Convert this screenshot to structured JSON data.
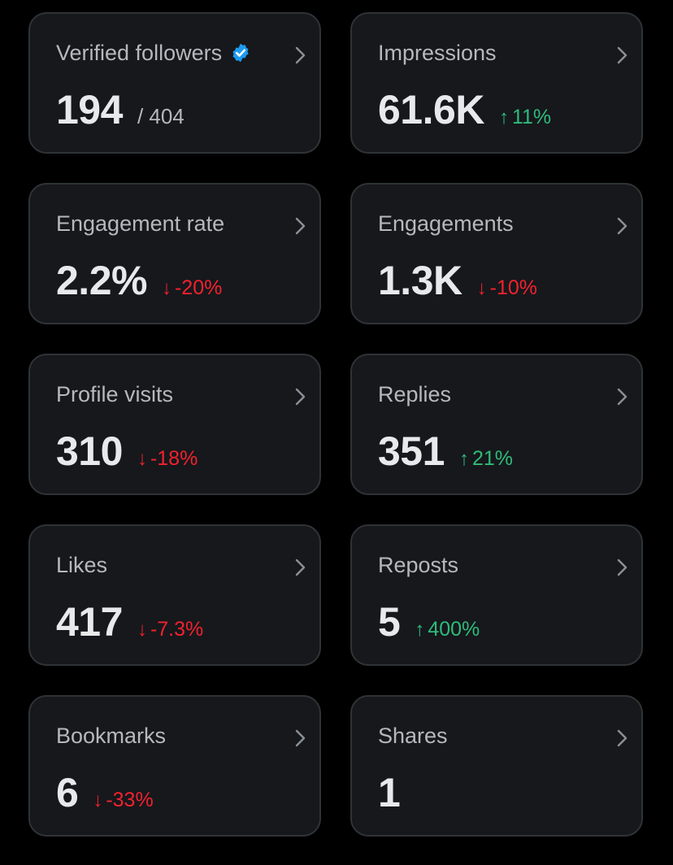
{
  "colors": {
    "background": "#000000",
    "card_background": "#16181c",
    "card_border": "#2f3336",
    "positive": "#2fbb7a",
    "negative": "#f4212e",
    "verified_badge": "#1d9bf0"
  },
  "cards": [
    {
      "title": "Verified followers",
      "value": "194",
      "total": "/ 404",
      "change": null,
      "direction": null,
      "icon": "verified-badge-icon"
    },
    {
      "title": "Impressions",
      "value": "61.6K",
      "change": "11%",
      "direction": "up"
    },
    {
      "title": "Engagement rate",
      "value": "2.2%",
      "change": "-20%",
      "direction": "down"
    },
    {
      "title": "Engagements",
      "value": "1.3K",
      "change": "-10%",
      "direction": "down"
    },
    {
      "title": "Profile visits",
      "value": "310",
      "change": "-18%",
      "direction": "down"
    },
    {
      "title": "Replies",
      "value": "351",
      "change": "21%",
      "direction": "up"
    },
    {
      "title": "Likes",
      "value": "417",
      "change": "-7.3%",
      "direction": "down"
    },
    {
      "title": "Reposts",
      "value": "5",
      "change": "400%",
      "direction": "up"
    },
    {
      "title": "Bookmarks",
      "value": "6",
      "change": "-33%",
      "direction": "down"
    },
    {
      "title": "Shares",
      "value": "1",
      "change": null,
      "direction": null
    }
  ],
  "arrows": {
    "up": "↑",
    "down": "↓"
  }
}
